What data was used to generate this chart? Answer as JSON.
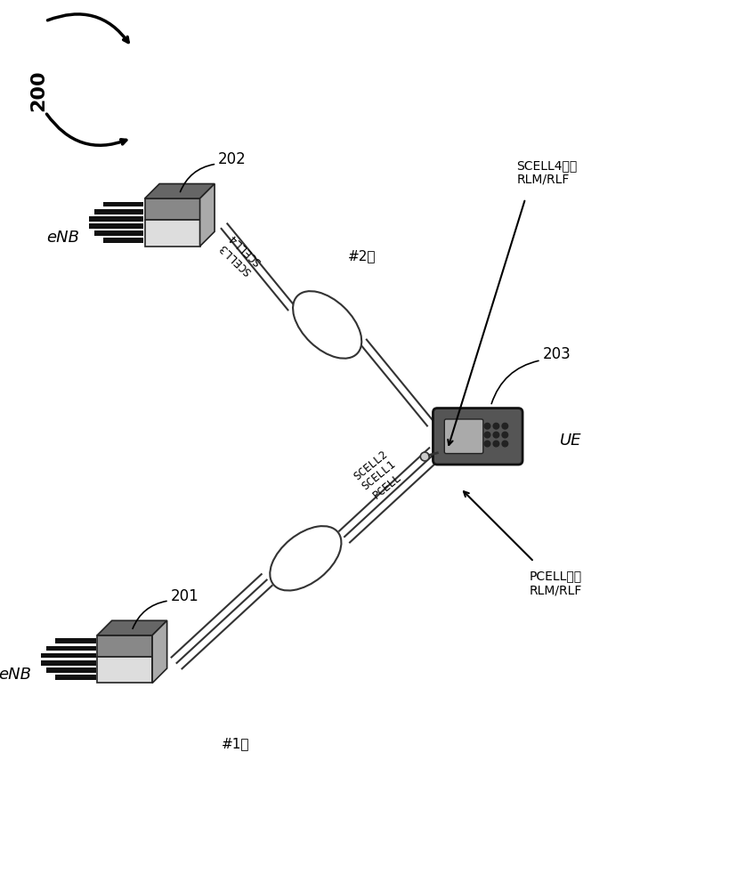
{
  "enb1_label": "eNB",
  "enb2_label": "eNB",
  "ue_label": "UE",
  "enb1_num": "201",
  "enb2_num": "202",
  "ue_num": "203",
  "group1_label": "#1组",
  "group2_label": "#2组",
  "link1_line1": "SCELL2",
  "link1_line2": "SCELL1",
  "link1_line3": "PCELL",
  "link2_line1": "SCELL3",
  "link2_line2": "SCELL4",
  "pcell_rlf_line1": "PCELL进行",
  "pcell_rlf_line2": "RLM/RLF",
  "scell_rlf_line1": "SCELL4进行",
  "scell_rlf_line2": "RLM/RLF",
  "title_num": "200",
  "enb_front_color": "#c0c0c0",
  "enb_top_color": "#888888",
  "enb_right_color": "#a0a0a0",
  "enb_dark_color": "#606060",
  "antenna_color": "#111111",
  "ue_body_color": "#444444",
  "ue_screen_color": "#aaaaaa",
  "ue_aura_color": "#cccccc"
}
